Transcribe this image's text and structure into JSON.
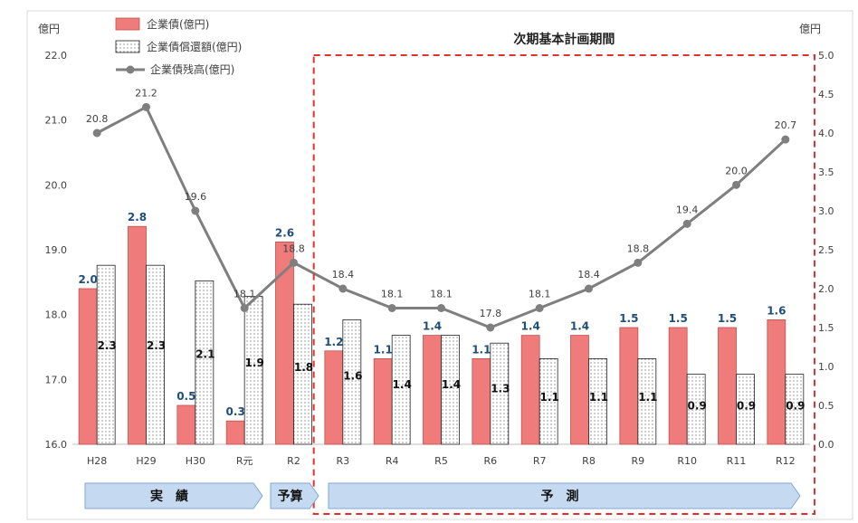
{
  "chart_data": {
    "type": "bar",
    "categories": [
      "H28",
      "H29",
      "H30",
      "R元",
      "R2",
      "R3",
      "R4",
      "R5",
      "R6",
      "R7",
      "R8",
      "R9",
      "R10",
      "R11",
      "R12"
    ],
    "series": [
      {
        "name": "企業債(億円)",
        "kind": "bar",
        "axis": "right",
        "color": "#f07b7b",
        "values": [
          2.0,
          2.8,
          0.5,
          0.3,
          2.6,
          1.2,
          1.1,
          1.4,
          1.1,
          1.4,
          1.4,
          1.5,
          1.5,
          1.5,
          1.6
        ]
      },
      {
        "name": "企業債償還額(億円)",
        "kind": "bar",
        "axis": "right",
        "pattern": "dotted",
        "values": [
          2.3,
          2.3,
          2.1,
          1.9,
          1.8,
          1.6,
          1.4,
          1.4,
          1.3,
          1.1,
          1.1,
          1.1,
          0.9,
          0.9,
          0.9
        ]
      },
      {
        "name": "企業債残高(億円)",
        "kind": "line",
        "axis": "left",
        "color": "#7f7f7f",
        "values": [
          20.8,
          21.2,
          19.6,
          18.1,
          18.8,
          18.4,
          18.1,
          18.1,
          17.8,
          18.1,
          18.4,
          18.8,
          19.4,
          20.0,
          20.7
        ]
      }
    ],
    "left_axis": {
      "unit": "億円",
      "min": 16.0,
      "max": 22.0,
      "step": 1.0
    },
    "right_axis": {
      "unit": "億円",
      "min": 0.0,
      "max": 5.0,
      "step": 0.5
    },
    "highlight": {
      "title": "次期基本計画期間",
      "from": "R3",
      "to": "R12"
    },
    "phases": [
      {
        "label": "実　績",
        "from": "H28",
        "to": "R元"
      },
      {
        "label": "予算",
        "from": "R2",
        "to": "R2"
      },
      {
        "label": "予　測",
        "from": "R3",
        "to": "R12"
      }
    ],
    "legend": {
      "placement": "top-left"
    },
    "grid": false
  }
}
